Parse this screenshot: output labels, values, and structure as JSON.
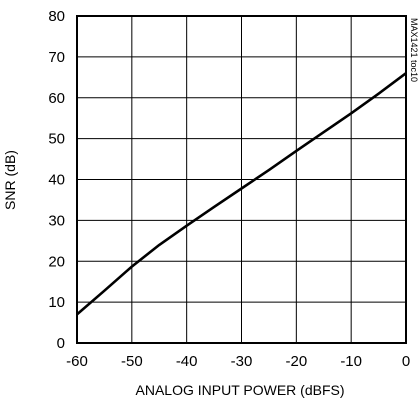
{
  "chart_data": {
    "type": "line",
    "title": "",
    "xlabel": "ANALOG INPUT POWER (dBFS)",
    "ylabel": "SNR (dB)",
    "xlim": [
      -60,
      0
    ],
    "ylim": [
      0,
      80
    ],
    "xticks": [
      "-60",
      "-50",
      "-40",
      "-30",
      "-20",
      "-10",
      "0"
    ],
    "yticks": [
      "0",
      "10",
      "20",
      "30",
      "40",
      "50",
      "60",
      "70",
      "80"
    ],
    "grid": true,
    "legend": "none",
    "side_label": "MAX1421 toc10",
    "series": [
      {
        "x": [
          -60,
          -55,
          -50,
          -45,
          -40,
          -35,
          -30,
          -25,
          -20,
          -15,
          -10,
          -5,
          0
        ],
        "y": [
          7,
          12.8,
          18.7,
          24,
          28.7,
          33.3,
          37.8,
          42.3,
          47,
          51.6,
          56.2,
          61,
          66
        ],
        "color": "#000000"
      }
    ]
  }
}
